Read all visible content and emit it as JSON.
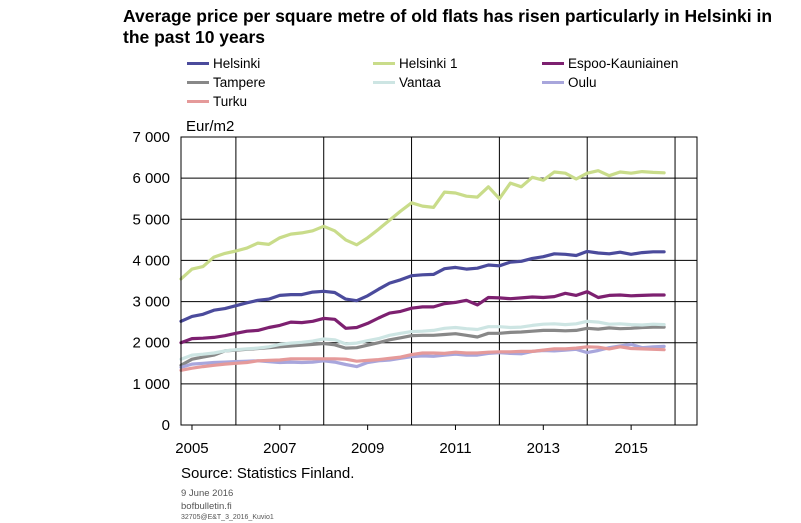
{
  "title": "Average price per square metre of old flats has risen particularly in Helsinki in the past 10 years",
  "footer": {
    "source": "Source: Statistics Finland.",
    "date": "9 June 2016",
    "site": "bofbulletin.fi",
    "code": "32705@E&T_3_2016_Kuvio1"
  },
  "chart_data": {
    "type": "line",
    "ylabel": "Eur/m2",
    "ylim": [
      0,
      7000
    ],
    "xlim": [
      2004.75,
      2016.5
    ],
    "yticks": [
      0,
      1000,
      2000,
      3000,
      4000,
      5000,
      6000,
      7000
    ],
    "ytick_labels": [
      "0",
      "1 000",
      "2 000",
      "3 000",
      "4 000",
      "5 000",
      "6 000",
      "7 000"
    ],
    "xticks": [
      2005,
      2007,
      2009,
      2011,
      2013,
      2015
    ],
    "xtick_labels": [
      "2005",
      "2007",
      "2009",
      "2011",
      "2013",
      "2015"
    ],
    "x_gridlines": [
      2006,
      2008,
      2010,
      2012,
      2014,
      2016
    ],
    "x": [
      2004.75,
      2005.0,
      2005.25,
      2005.5,
      2005.75,
      2006.0,
      2006.25,
      2006.5,
      2006.75,
      2007.0,
      2007.25,
      2007.5,
      2007.75,
      2008.0,
      2008.25,
      2008.5,
      2008.75,
      2009.0,
      2009.25,
      2009.5,
      2009.75,
      2010.0,
      2010.25,
      2010.5,
      2010.75,
      2011.0,
      2011.25,
      2011.5,
      2011.75,
      2012.0,
      2012.25,
      2012.5,
      2012.75,
      2013.0,
      2013.25,
      2013.5,
      2013.75,
      2014.0,
      2014.25,
      2014.5,
      2014.75,
      2015.0,
      2015.25,
      2015.5,
      2015.75
    ],
    "series": [
      {
        "name": "Helsinki",
        "color": "#4b4b9c",
        "values": [
          2520,
          2640,
          2690,
          2790,
          2830,
          2900,
          2970,
          3030,
          3060,
          3150,
          3170,
          3170,
          3230,
          3250,
          3220,
          3060,
          3020,
          3140,
          3300,
          3450,
          3530,
          3630,
          3650,
          3660,
          3800,
          3830,
          3790,
          3810,
          3890,
          3870,
          3960,
          3980,
          4050,
          4090,
          4160,
          4150,
          4120,
          4220,
          4180,
          4160,
          4200,
          4150,
          4190,
          4210,
          4210
        ]
      },
      {
        "name": "Helsinki 1",
        "color": "#c9dc8a",
        "values": [
          3550,
          3790,
          3850,
          4080,
          4170,
          4230,
          4300,
          4420,
          4390,
          4550,
          4640,
          4670,
          4720,
          4830,
          4720,
          4500,
          4380,
          4550,
          4760,
          4980,
          5200,
          5400,
          5320,
          5290,
          5660,
          5640,
          5560,
          5540,
          5790,
          5500,
          5880,
          5790,
          6020,
          5950,
          6150,
          6120,
          5980,
          6120,
          6180,
          6060,
          6150,
          6120,
          6160,
          6140,
          6130
        ]
      },
      {
        "name": "Espoo-Kauniainen",
        "color": "#7d2070",
        "values": [
          2000,
          2100,
          2110,
          2130,
          2170,
          2230,
          2280,
          2300,
          2370,
          2420,
          2500,
          2490,
          2520,
          2590,
          2570,
          2350,
          2370,
          2470,
          2600,
          2720,
          2760,
          2840,
          2870,
          2870,
          2950,
          2980,
          3030,
          2920,
          3100,
          3090,
          3070,
          3090,
          3110,
          3100,
          3120,
          3200,
          3150,
          3240,
          3100,
          3150,
          3160,
          3140,
          3150,
          3160,
          3160
        ]
      },
      {
        "name": "Tampere",
        "color": "#888888",
        "values": [
          1450,
          1600,
          1650,
          1700,
          1800,
          1820,
          1840,
          1860,
          1880,
          1900,
          1920,
          1940,
          1960,
          1980,
          1950,
          1870,
          1880,
          1940,
          2000,
          2070,
          2120,
          2170,
          2180,
          2180,
          2200,
          2220,
          2180,
          2140,
          2230,
          2230,
          2250,
          2260,
          2280,
          2300,
          2300,
          2290,
          2300,
          2350,
          2330,
          2360,
          2340,
          2350,
          2370,
          2380,
          2380
        ]
      },
      {
        "name": "Vantaa",
        "color": "#cde5e3",
        "values": [
          1600,
          1700,
          1720,
          1750,
          1800,
          1830,
          1850,
          1870,
          1900,
          1960,
          1990,
          2010,
          2040,
          2090,
          2070,
          1970,
          1990,
          2050,
          2100,
          2180,
          2230,
          2270,
          2280,
          2300,
          2350,
          2370,
          2340,
          2320,
          2390,
          2390,
          2370,
          2380,
          2420,
          2450,
          2460,
          2440,
          2460,
          2520,
          2500,
          2450,
          2460,
          2440,
          2430,
          2450,
          2440
        ]
      },
      {
        "name": "Oulu",
        "color": "#a8a6dc",
        "values": [
          1400,
          1480,
          1500,
          1520,
          1530,
          1540,
          1550,
          1560,
          1540,
          1520,
          1530,
          1520,
          1530,
          1560,
          1530,
          1470,
          1420,
          1520,
          1560,
          1580,
          1620,
          1660,
          1680,
          1670,
          1700,
          1720,
          1700,
          1700,
          1740,
          1760,
          1740,
          1730,
          1790,
          1810,
          1800,
          1820,
          1840,
          1760,
          1810,
          1880,
          1920,
          1960,
          1880,
          1900,
          1910
        ]
      },
      {
        "name": "Turku",
        "color": "#e59a9a",
        "values": [
          1330,
          1380,
          1420,
          1450,
          1480,
          1500,
          1520,
          1560,
          1570,
          1580,
          1610,
          1610,
          1610,
          1610,
          1610,
          1600,
          1550,
          1570,
          1590,
          1620,
          1650,
          1710,
          1750,
          1750,
          1740,
          1770,
          1750,
          1750,
          1770,
          1780,
          1780,
          1790,
          1790,
          1820,
          1850,
          1850,
          1870,
          1900,
          1890,
          1850,
          1900,
          1860,
          1850,
          1840,
          1830
        ]
      }
    ]
  }
}
